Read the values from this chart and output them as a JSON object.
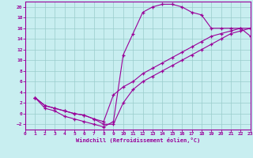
{
  "xlabel": "Windchill (Refroidissement éolien,°C)",
  "bg_color": "#c8eef0",
  "grid_color": "#99cccc",
  "line_color": "#990099",
  "xlim": [
    0,
    23
  ],
  "ylim": [
    -3,
    21
  ],
  "xticks": [
    0,
    1,
    2,
    3,
    4,
    5,
    6,
    7,
    8,
    9,
    10,
    11,
    12,
    13,
    14,
    15,
    16,
    17,
    18,
    19,
    20,
    21,
    22,
    23
  ],
  "yticks": [
    -2,
    0,
    2,
    4,
    6,
    8,
    10,
    12,
    14,
    16,
    18,
    20
  ],
  "line1_x": [
    1,
    2,
    3,
    4,
    5,
    6,
    7,
    8,
    9,
    10,
    11,
    12,
    13,
    14,
    15,
    16,
    17,
    18,
    19,
    20,
    21,
    22,
    23
  ],
  "line1_y": [
    3,
    1,
    0.5,
    -0.5,
    -1,
    -1.5,
    -2,
    -2.5,
    -1.5,
    11,
    15,
    19,
    20,
    20.5,
    20.5,
    20,
    19,
    18.5,
    16,
    16,
    16,
    16,
    14.5
  ],
  "line2_x": [
    1,
    2,
    3,
    4,
    5,
    6,
    7,
    8,
    9,
    10,
    11,
    12,
    13,
    14,
    15,
    16,
    17,
    18,
    19,
    20,
    21,
    22,
    23
  ],
  "line2_y": [
    3,
    1.5,
    1,
    0.5,
    0,
    -0.3,
    -1,
    -1.5,
    3.5,
    5,
    6,
    7.5,
    8.5,
    9.5,
    10.5,
    11.5,
    12.5,
    13.5,
    14.5,
    15,
    15.5,
    16,
    16
  ],
  "line3_x": [
    1,
    2,
    3,
    4,
    5,
    6,
    7,
    8,
    9,
    10,
    11,
    12,
    13,
    14,
    15,
    16,
    17,
    18,
    19,
    20,
    21,
    22,
    23
  ],
  "line3_y": [
    3,
    1.5,
    1,
    0.5,
    0,
    -0.3,
    -1,
    -2,
    -2,
    2,
    4.5,
    6,
    7,
    8,
    9,
    10,
    11,
    12,
    13,
    14,
    15,
    15.5,
    16
  ]
}
